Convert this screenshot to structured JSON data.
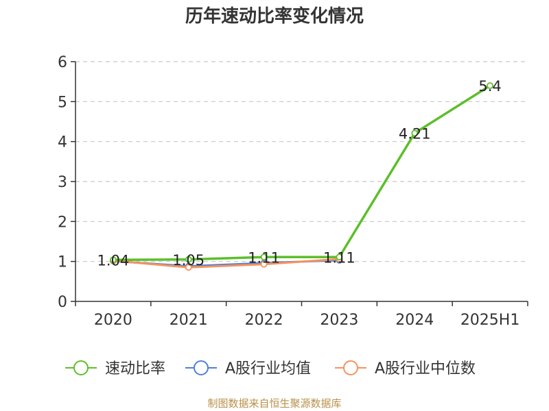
{
  "chart_data": {
    "type": "line",
    "title": "历年速动比率变化情况",
    "categories": [
      "2020",
      "2021",
      "2022",
      "2023",
      "2024",
      "2025H1"
    ],
    "ylim": [
      0,
      6
    ],
    "yticks": [
      0,
      1,
      2,
      3,
      4,
      5,
      6
    ],
    "grid": true,
    "legend_position": "bottom",
    "series": [
      {
        "name": "速动比率",
        "values": [
          1.04,
          1.05,
          1.11,
          1.11,
          4.21,
          5.4
        ],
        "color": "#5cbf2a",
        "labels": [
          "1.04",
          "1.05",
          "1.11",
          "1.11",
          "4.21",
          "5.4"
        ]
      },
      {
        "name": "A股行业均值",
        "values": [
          1.01,
          0.88,
          0.96,
          1.03,
          null,
          null
        ],
        "color": "#4e7fd8"
      },
      {
        "name": "A股行业中位数",
        "values": [
          1.02,
          0.85,
          0.93,
          1.06,
          null,
          null
        ],
        "color": "#f5925e"
      }
    ]
  },
  "footer": "制图数据来自恒生聚源数据库"
}
